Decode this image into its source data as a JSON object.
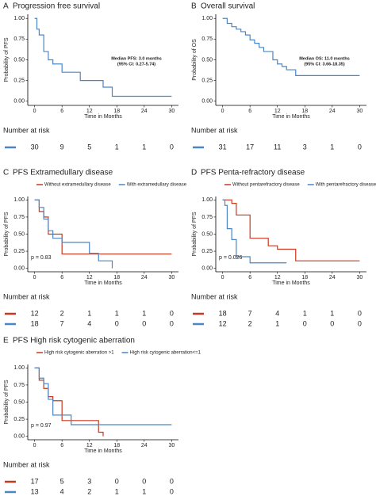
{
  "chart_data": [
    {
      "type": "line",
      "label": "A",
      "title": "Progression free survival",
      "ylabel": "Probability of PFS",
      "xlabel": "Time in Months",
      "xlim": [
        -1.5,
        31.5
      ],
      "xticks": [
        0,
        6,
        12,
        18,
        24,
        30
      ],
      "ylim": [
        -0.05,
        1.05
      ],
      "yticks": [
        {
          "value": 0,
          "label": "0.00"
        },
        {
          "value": 0.25,
          "label": "0.25"
        },
        {
          "value": 0.5,
          "label": "0.50"
        },
        {
          "value": 0.75,
          "label": "0.75"
        },
        {
          "value": 1,
          "label": "1.00"
        }
      ],
      "annotation": [
        "Median PFS: 3.0 months",
        "(95% CI: 0.27-5.74)"
      ],
      "risk_title": "Number at risk",
      "series": [
        {
          "color": "#4a86c5",
          "x": [
            0,
            0.5,
            1,
            2,
            3,
            4,
            6,
            10,
            15,
            17,
            30
          ],
          "values": [
            1,
            0.87,
            0.8,
            0.6,
            0.5,
            0.45,
            0.35,
            0.25,
            0.17,
            0.06,
            0.06
          ],
          "at_risk": [
            30,
            9,
            5,
            1,
            1,
            0
          ]
        }
      ]
    },
    {
      "type": "line",
      "label": "B",
      "title": "Overall survival",
      "ylabel": "Probability of OS",
      "xlabel": "Time in Months",
      "xlim": [
        -1.5,
        31.5
      ],
      "xticks": [
        0,
        6,
        12,
        18,
        24,
        30
      ],
      "ylim": [
        -0.05,
        1.05
      ],
      "yticks": [
        {
          "value": 0,
          "label": "0.00"
        },
        {
          "value": 0.25,
          "label": "0.25"
        },
        {
          "value": 0.5,
          "label": "0.50"
        },
        {
          "value": 0.75,
          "label": "0.75"
        },
        {
          "value": 1,
          "label": "1.00"
        }
      ],
      "annotation": [
        "Median OS: 11.0 months",
        "(95% CI: 3.66-18.35)"
      ],
      "risk_title": "Number at risk",
      "series": [
        {
          "color": "#4a86c5",
          "x": [
            0,
            1,
            2,
            3,
            4,
            5,
            6,
            7,
            8,
            9,
            11,
            12,
            13,
            14,
            16,
            30
          ],
          "values": [
            1,
            0.94,
            0.9,
            0.87,
            0.84,
            0.8,
            0.74,
            0.7,
            0.65,
            0.6,
            0.5,
            0.45,
            0.42,
            0.38,
            0.31,
            0.31
          ],
          "at_risk": [
            31,
            17,
            11,
            3,
            1,
            0
          ]
        }
      ]
    },
    {
      "type": "line",
      "label": "C",
      "title": "PFS Extramedullary disease",
      "ylabel": "Probability of PFS",
      "xlabel": "Time in Months",
      "xlim": [
        -1.5,
        31.5
      ],
      "xticks": [
        0,
        6,
        12,
        18,
        24,
        30
      ],
      "ylim": [
        -0.05,
        1.05
      ],
      "yticks": [
        {
          "value": 0,
          "label": "0.00"
        },
        {
          "value": 0.25,
          "label": "0.25"
        },
        {
          "value": 0.5,
          "label": "0.50"
        },
        {
          "value": 0.75,
          "label": "0.75"
        },
        {
          "value": 1,
          "label": "1.00"
        }
      ],
      "p_value": "p = 0.83",
      "risk_title": "Number at risk",
      "series": [
        {
          "name": "Without extramedullary disease",
          "color": "#c8381e",
          "x": [
            0,
            1,
            2,
            3,
            6,
            30
          ],
          "values": [
            1,
            0.83,
            0.75,
            0.5,
            0.21,
            0.21
          ],
          "at_risk": [
            12,
            2,
            1,
            1,
            1,
            0
          ]
        },
        {
          "name": "With extramedullary disease",
          "color": "#4a86c5",
          "x": [
            0,
            1,
            2,
            3,
            4,
            6,
            12,
            14,
            17
          ],
          "values": [
            1,
            0.89,
            0.72,
            0.55,
            0.44,
            0.38,
            0.22,
            0.11,
            0
          ],
          "at_risk": [
            18,
            7,
            4,
            0,
            0,
            0
          ]
        }
      ]
    },
    {
      "type": "line",
      "label": "D",
      "title": "PFS Penta-refractory disease",
      "ylabel": "Probability of PFS",
      "xlabel": "Time in Months",
      "xlim": [
        -1.5,
        31.5
      ],
      "xticks": [
        0,
        6,
        12,
        18,
        24,
        30
      ],
      "ylim": [
        -0.05,
        1.05
      ],
      "yticks": [
        {
          "value": 0,
          "label": "0.00"
        },
        {
          "value": 0.25,
          "label": "0.25"
        },
        {
          "value": 0.5,
          "label": "0.50"
        },
        {
          "value": 0.75,
          "label": "0.75"
        },
        {
          "value": 1,
          "label": "1.00"
        }
      ],
      "p_value": "p = 0.026",
      "risk_title": "Number at risk",
      "series": [
        {
          "name": "Without pentarefractory disease",
          "color": "#c8381e",
          "x": [
            0,
            2,
            3,
            6,
            10,
            12,
            16,
            30
          ],
          "values": [
            1,
            0.95,
            0.78,
            0.44,
            0.33,
            0.28,
            0.11,
            0.11
          ],
          "at_risk": [
            18,
            7,
            4,
            1,
            1,
            0
          ]
        },
        {
          "name": "With pentarefractory disease",
          "color": "#4a86c5",
          "x": [
            0,
            0.5,
            1,
            2,
            3,
            6,
            14
          ],
          "values": [
            1,
            0.92,
            0.58,
            0.42,
            0.17,
            0.08,
            0.08
          ],
          "at_risk": [
            12,
            2,
            1,
            0,
            0,
            0
          ]
        }
      ]
    },
    {
      "type": "line",
      "label": "E",
      "title": "PFS High risk cytogenic aberration",
      "ylabel": "Probability of PFS",
      "xlabel": "Time in Months",
      "xlim": [
        -1.5,
        31.5
      ],
      "xticks": [
        0,
        6,
        12,
        18,
        24,
        30
      ],
      "ylim": [
        -0.05,
        1.05
      ],
      "yticks": [
        {
          "value": 0,
          "label": "0.00"
        },
        {
          "value": 0.25,
          "label": "0.25"
        },
        {
          "value": 0.5,
          "label": "0.50"
        },
        {
          "value": 0.75,
          "label": "0.75"
        },
        {
          "value": 1,
          "label": "1.00"
        }
      ],
      "p_value": "p = 0.97",
      "risk_title": "Number at risk",
      "series": [
        {
          "name": "High risk cytogenic aberration >1",
          "color": "#c8381e",
          "x": [
            0,
            1,
            2,
            3,
            4,
            6,
            14,
            15
          ],
          "values": [
            1,
            0.82,
            0.7,
            0.58,
            0.52,
            0.23,
            0.06,
            0
          ],
          "at_risk": [
            17,
            5,
            3,
            0,
            0,
            0
          ]
        },
        {
          "name": "High risk cytogenic aberration<=1",
          "color": "#4a86c5",
          "x": [
            0,
            1,
            2,
            3,
            4,
            8,
            30
          ],
          "values": [
            1,
            0.85,
            0.77,
            0.54,
            0.31,
            0.17,
            0.17
          ],
          "at_risk": [
            13,
            4,
            2,
            1,
            1,
            0
          ]
        }
      ]
    }
  ]
}
